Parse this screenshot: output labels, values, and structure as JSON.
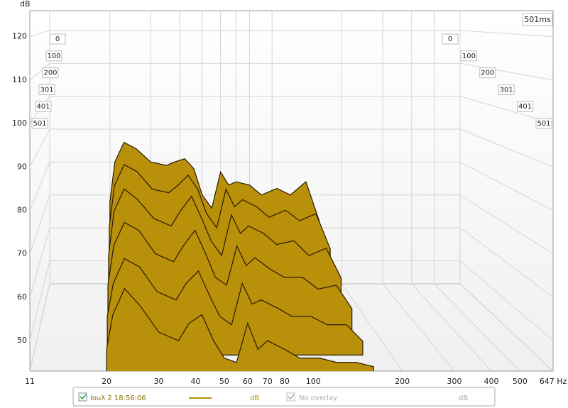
{
  "chart_data": {
    "type": "waterfall",
    "y_label": "dB",
    "time_label": "501ms",
    "x": [
      20,
      21,
      23,
      26,
      30,
      35,
      38,
      42,
      46,
      50,
      55,
      60,
      65,
      70,
      80,
      90,
      105,
      120,
      140,
      160
    ],
    "series": [
      {
        "name": "0",
        "values": [
          68,
          80,
          86,
          84,
          80,
          79,
          80,
          81,
          78,
          70,
          66,
          77,
          73,
          74,
          73,
          70,
          72,
          70,
          74,
          62
        ]
      },
      {
        "name": "100",
        "values": [
          64,
          76,
          82,
          80,
          75,
          74,
          76,
          79,
          75,
          68,
          64,
          75,
          70,
          72,
          70,
          67,
          69,
          66,
          68,
          58
        ]
      },
      {
        "name": "200",
        "values": [
          60,
          72,
          78,
          75,
          70,
          68,
          72,
          76,
          70,
          64,
          60,
          71,
          66,
          68,
          66,
          63,
          64,
          60,
          62,
          54
        ]
      },
      {
        "name": "301",
        "values": [
          56,
          66,
          72,
          70,
          64,
          62,
          66,
          70,
          64,
          58,
          56,
          66,
          61,
          63,
          60,
          58,
          58,
          55,
          56,
          50
        ]
      },
      {
        "name": "401",
        "values": [
          52,
          60,
          66,
          64,
          58,
          56,
          60,
          63,
          57,
          52,
          50,
          60,
          55,
          56,
          54,
          52,
          52,
          50,
          50,
          46
        ]
      },
      {
        "name": "501",
        "values": [
          48,
          56,
          62,
          58,
          52,
          50,
          54,
          56,
          50,
          46,
          45,
          54,
          48,
          50,
          48,
          46,
          46,
          45,
          45,
          44
        ]
      }
    ],
    "color": "#b8900a",
    "xscale": "log",
    "xlim": [
      11,
      647
    ],
    "xticks": [
      11,
      20,
      30,
      40,
      50,
      60,
      70,
      80,
      100,
      200,
      300,
      400,
      500,
      {
        "value": 647,
        "label": "647 Hz"
      }
    ],
    "ylim": [
      43,
      126
    ],
    "yticks": [
      50,
      60,
      70,
      80,
      90,
      100,
      110,
      120
    ],
    "grid": true,
    "legend": {
      "series_label": "louλ 2 18:56:06",
      "unit": "dB",
      "overlay_label": "No overlay",
      "overlay_unit": "dB"
    }
  }
}
